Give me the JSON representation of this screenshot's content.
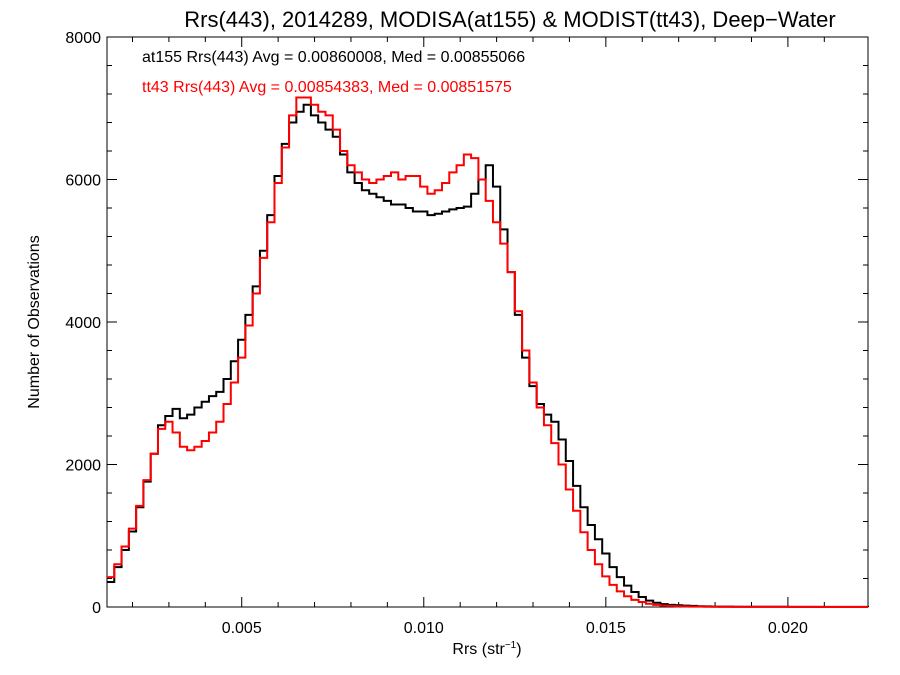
{
  "chart_data": {
    "type": "line",
    "title": "Rrs(443), 2014289, MODISA(at155) & MODIST(tt43), Deep−Water",
    "xlabel": "Rrs (str",
    "xlabel_sup": "−1",
    "xlabel_end": ")",
    "ylabel": "Number of Observations",
    "xlim": [
      0.0013,
      0.0222
    ],
    "ylim": [
      0,
      8000
    ],
    "x_ticks": [
      0.005,
      0.01,
      0.015,
      0.02
    ],
    "x_tick_labels": [
      "0.005",
      "0.010",
      "0.015",
      "0.020"
    ],
    "y_ticks": [
      0,
      2000,
      4000,
      6000,
      8000
    ],
    "y_tick_labels": [
      "0",
      "2000",
      "4000",
      "6000",
      "8000"
    ],
    "grid": false,
    "stepped": true,
    "annotations": [
      {
        "text": "at155 Rrs(443) Avg = 0.00860008, Med = 0.00855066",
        "color": "#000000"
      },
      {
        "text": "tt43 Rrs(443) Avg = 0.00854383, Med = 0.00851575",
        "color": "#ff0000"
      }
    ],
    "series": [
      {
        "color": "#000000",
        "x": [
          0.0013,
          0.0015,
          0.0017,
          0.0019,
          0.0021,
          0.0023,
          0.0025,
          0.0027,
          0.0029,
          0.0031,
          0.0033,
          0.0035,
          0.0037,
          0.0039,
          0.0041,
          0.0043,
          0.0045,
          0.0047,
          0.0049,
          0.0051,
          0.0053,
          0.0055,
          0.0057,
          0.0059,
          0.0061,
          0.0063,
          0.0065,
          0.0067,
          0.0069,
          0.0071,
          0.0073,
          0.0075,
          0.0077,
          0.0079,
          0.0081,
          0.0083,
          0.0085,
          0.0087,
          0.0089,
          0.0091,
          0.0093,
          0.0095,
          0.0097,
          0.0099,
          0.0101,
          0.0103,
          0.0105,
          0.0107,
          0.0109,
          0.0111,
          0.0113,
          0.0115,
          0.0117,
          0.0119,
          0.0121,
          0.0123,
          0.0125,
          0.0127,
          0.0129,
          0.0131,
          0.0133,
          0.0135,
          0.0137,
          0.0139,
          0.0141,
          0.0143,
          0.0145,
          0.0147,
          0.0149,
          0.0151,
          0.0153,
          0.0155,
          0.0157,
          0.0159,
          0.0161,
          0.0163,
          0.0165,
          0.0167,
          0.0169,
          0.0171,
          0.0173,
          0.0175,
          0.0177,
          0.0179,
          0.0181,
          0.0185,
          0.019,
          0.02,
          0.021,
          0.0222
        ],
        "y": [
          350,
          560,
          800,
          1060,
          1400,
          1760,
          2150,
          2550,
          2680,
          2780,
          2650,
          2700,
          2800,
          2880,
          2960,
          3020,
          3200,
          3450,
          3750,
          4100,
          4500,
          5000,
          5500,
          6050,
          6500,
          6800,
          6950,
          7050,
          6900,
          6800,
          6700,
          6600,
          6350,
          6100,
          5950,
          5850,
          5800,
          5750,
          5700,
          5650,
          5650,
          5600,
          5550,
          5550,
          5500,
          5520,
          5550,
          5580,
          5600,
          5620,
          5800,
          6000,
          6200,
          5900,
          5300,
          4700,
          4100,
          3500,
          3100,
          2850,
          2700,
          2600,
          2350,
          2050,
          1700,
          1400,
          1150,
          950,
          750,
          560,
          420,
          300,
          210,
          140,
          90,
          60,
          40,
          30,
          25,
          20,
          15,
          10,
          8,
          6,
          5,
          4,
          3,
          2,
          1,
          0
        ]
      },
      {
        "color": "#ff0000",
        "x": [
          0.0013,
          0.0015,
          0.0017,
          0.0019,
          0.0021,
          0.0023,
          0.0025,
          0.0027,
          0.0029,
          0.0031,
          0.0033,
          0.0035,
          0.0037,
          0.0039,
          0.0041,
          0.0043,
          0.0045,
          0.0047,
          0.0049,
          0.0051,
          0.0053,
          0.0055,
          0.0057,
          0.0059,
          0.0061,
          0.0063,
          0.0065,
          0.0067,
          0.0069,
          0.0071,
          0.0073,
          0.0075,
          0.0077,
          0.0079,
          0.0081,
          0.0083,
          0.0085,
          0.0087,
          0.0089,
          0.0091,
          0.0093,
          0.0095,
          0.0097,
          0.0099,
          0.0101,
          0.0103,
          0.0105,
          0.0107,
          0.0109,
          0.0111,
          0.0113,
          0.0115,
          0.0117,
          0.0119,
          0.0121,
          0.0123,
          0.0125,
          0.0127,
          0.0129,
          0.0131,
          0.0133,
          0.0135,
          0.0137,
          0.0139,
          0.0141,
          0.0143,
          0.0145,
          0.0147,
          0.0149,
          0.0151,
          0.0153,
          0.0155,
          0.0157,
          0.0159,
          0.0161,
          0.0163,
          0.0165,
          0.0167,
          0.0169,
          0.0171,
          0.0173,
          0.0175,
          0.0177,
          0.0179,
          0.0181,
          0.0185,
          0.019,
          0.02,
          0.021,
          0.0222
        ],
        "y": [
          420,
          600,
          850,
          1100,
          1420,
          1780,
          2150,
          2500,
          2600,
          2450,
          2250,
          2200,
          2250,
          2330,
          2450,
          2600,
          2850,
          3150,
          3500,
          3950,
          4400,
          4900,
          5400,
          5950,
          6450,
          6900,
          7150,
          7150,
          7050,
          6950,
          6900,
          6700,
          6400,
          6200,
          6100,
          6000,
          5950,
          6000,
          6050,
          6100,
          6000,
          6050,
          6050,
          5900,
          5800,
          5850,
          5950,
          6100,
          6200,
          6350,
          6300,
          6000,
          5700,
          5400,
          5100,
          4700,
          4150,
          3600,
          3150,
          2800,
          2550,
          2300,
          2000,
          1650,
          1350,
          1050,
          800,
          600,
          430,
          310,
          220,
          150,
          100,
          70,
          45,
          30,
          20,
          15,
          10,
          8,
          6,
          5,
          4,
          3,
          2,
          2,
          1,
          1,
          0,
          0
        ]
      }
    ]
  }
}
